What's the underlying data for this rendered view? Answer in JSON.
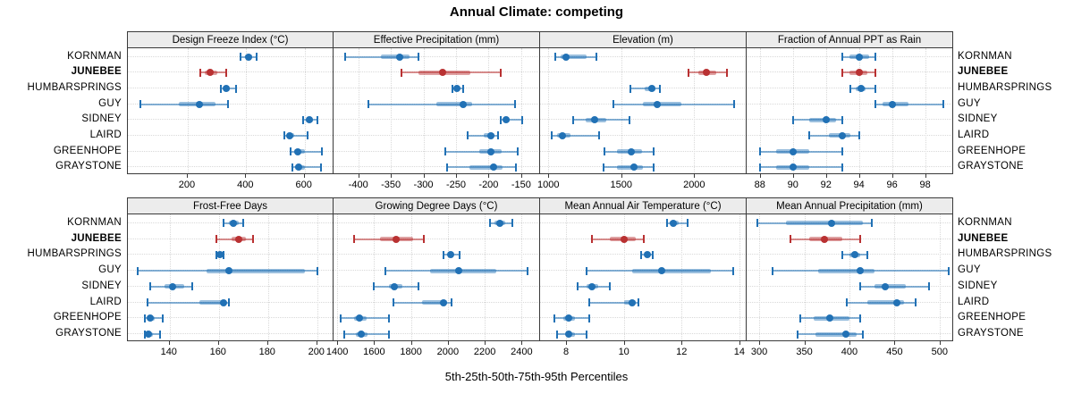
{
  "chart_data": {
    "type": "dotplot",
    "title": "Annual Climate: competing",
    "xlabel": "5th-25th-50th-75th-95th Percentiles",
    "legend_position": "none",
    "grid": "dotted",
    "percentiles": [
      "5th",
      "25th",
      "50th",
      "75th",
      "95th"
    ],
    "stations": [
      "KORNMAN",
      "JUNEBEE",
      "HUMBARSPRINGS",
      "GUY",
      "SIDNEY",
      "LAIRD",
      "GREENHOPE",
      "GRAYSTONE"
    ],
    "highlight_station": "JUNEBEE",
    "colors": {
      "normal": "#2171B5",
      "highlight": "#B93132",
      "grid": "#D9D9D9",
      "strip_bg": "#ECECEC",
      "border": "#3A3A3A"
    },
    "panels": [
      {
        "title": "Design Freeze Index (°C)",
        "row": 0,
        "col": 0,
        "xlim": [
          -5,
          702
        ],
        "ticks": [
          200,
          400,
          600
        ],
        "values": {
          "KORNMAN": [
            382,
            395,
            408,
            420,
            435
          ],
          "JUNEBEE": [
            242,
            258,
            276,
            300,
            332
          ],
          "HUMBARSPRINGS": [
            313,
            325,
            332,
            345,
            365
          ],
          "GUY": [
            37,
            170,
            240,
            295,
            338
          ],
          "SIDNEY": [
            595,
            605,
            617,
            628,
            644
          ],
          "LAIRD": [
            532,
            540,
            550,
            565,
            610
          ],
          "GREENHOPE": [
            553,
            565,
            577,
            600,
            658
          ],
          "GRAYSTONE": [
            557,
            568,
            581,
            600,
            655
          ]
        }
      },
      {
        "title": "Effective Precipitation (mm)",
        "row": 0,
        "col": 1,
        "xlim": [
          -438,
          -121
        ],
        "ticks": [
          -400,
          -350,
          -300,
          -250,
          -200,
          -150
        ],
        "values": {
          "KORNMAN": [
            -420,
            -365,
            -336,
            -322,
            -307
          ],
          "JUNEBEE": [
            -334,
            -307,
            -271,
            -228,
            -182
          ],
          "HUMBARSPRINGS": [
            -256,
            -251,
            -248,
            -244,
            -239
          ],
          "GUY": [
            -384,
            -280,
            -239,
            -225,
            -160
          ],
          "SIDNEY": [
            -181,
            -177,
            -173,
            -168,
            -148
          ],
          "LAIRD": [
            -232,
            -207,
            -196,
            -191,
            -186
          ],
          "GREENHOPE": [
            -266,
            -215,
            -196,
            -180,
            -155
          ],
          "GRAYSTONE": [
            -264,
            -230,
            -192,
            -178,
            -158
          ]
        }
      },
      {
        "title": "Elevation (m)",
        "row": 0,
        "col": 2,
        "xlim": [
          943,
          2360
        ],
        "ticks": [
          1000,
          1500,
          2000
        ],
        "values": {
          "KORNMAN": [
            1049,
            1085,
            1120,
            1260,
            1327
          ],
          "JUNEBEE": [
            1963,
            2030,
            2082,
            2150,
            2228
          ],
          "HUMBARSPRINGS": [
            1562,
            1660,
            1712,
            1735,
            1766
          ],
          "GUY": [
            1448,
            1650,
            1745,
            1915,
            2273
          ],
          "SIDNEY": [
            1170,
            1255,
            1315,
            1400,
            1555
          ],
          "LAIRD": [
            1023,
            1060,
            1097,
            1150,
            1350
          ],
          "GREENHOPE": [
            1384,
            1470,
            1568,
            1640,
            1723
          ],
          "GRAYSTONE": [
            1378,
            1470,
            1588,
            1650,
            1723
          ]
        }
      },
      {
        "title": "Fraction of Annual PPT as Rain",
        "row": 0,
        "col": 3,
        "xlim": [
          87.2,
          99.7
        ],
        "ticks": [
          88,
          90,
          92,
          94,
          96,
          98
        ],
        "values": {
          "KORNMAN": [
            93,
            93.4,
            94,
            94.6,
            95
          ],
          "JUNEBEE": [
            93,
            93.4,
            94,
            94.5,
            95
          ],
          "HUMBARSPRINGS": [
            93.5,
            93.8,
            94.1,
            94.4,
            95
          ],
          "GUY": [
            95,
            95.4,
            96,
            97,
            99.1
          ],
          "SIDNEY": [
            90,
            91,
            92,
            92.6,
            93
          ],
          "LAIRD": [
            91,
            92.2,
            93,
            93.5,
            94
          ],
          "GREENHOPE": [
            88,
            89,
            90,
            91,
            93
          ],
          "GRAYSTONE": [
            88,
            89,
            90,
            91,
            93
          ]
        }
      },
      {
        "title": "Frost-Free Days",
        "row": 1,
        "col": 0,
        "xlim": [
          123,
          207
        ],
        "ticks": [
          140,
          160,
          180,
          200
        ],
        "values": {
          "KORNMAN": [
            162,
            164,
            166,
            168,
            170
          ],
          "JUNEBEE": [
            159,
            165,
            168,
            171,
            174
          ],
          "HUMBARSPRINGS": [
            159,
            160,
            160.5,
            161,
            162
          ],
          "GUY": [
            127,
            155,
            164,
            195,
            200
          ],
          "SIDNEY": [
            132,
            138,
            141,
            146,
            149
          ],
          "LAIRD": [
            131,
            152,
            162,
            163,
            164
          ],
          "GREENHOPE": [
            130,
            131,
            132,
            134,
            137
          ],
          "GRAYSTONE": [
            130,
            131,
            131.5,
            133,
            136
          ]
        }
      },
      {
        "title": "Growing Degree Days (°C)",
        "row": 1,
        "col": 1,
        "xlim": [
          1380,
          2500
        ],
        "ticks": [
          1400,
          1600,
          1800,
          2000,
          2200,
          2400
        ],
        "values": {
          "KORNMAN": [
            2230,
            2255,
            2280,
            2310,
            2350
          ],
          "JUNEBEE": [
            1490,
            1630,
            1720,
            1810,
            1870
          ],
          "HUMBARSPRINGS": [
            1975,
            2000,
            2015,
            2030,
            2065
          ],
          "GUY": [
            1660,
            1905,
            2060,
            2260,
            2430
          ],
          "SIDNEY": [
            1600,
            1680,
            1710,
            1755,
            1840
          ],
          "LAIRD": [
            1705,
            1860,
            1975,
            1995,
            2020
          ],
          "GREENHOPE": [
            1420,
            1490,
            1520,
            1560,
            1680
          ],
          "GRAYSTONE": [
            1440,
            1500,
            1530,
            1565,
            1680
          ]
        }
      },
      {
        "title": "Mean Annual Air Temperature (°C)",
        "row": 1,
        "col": 2,
        "xlim": [
          7.1,
          14.25
        ],
        "ticks": [
          8,
          10,
          12,
          14
        ],
        "values": {
          "KORNMAN": [
            11.5,
            11.6,
            11.7,
            11.9,
            12.2
          ],
          "JUNEBEE": [
            8.9,
            9.5,
            10.0,
            10.4,
            10.7
          ],
          "HUMBARSPRINGS": [
            10.6,
            10.75,
            10.8,
            10.9,
            11.0
          ],
          "GUY": [
            8.7,
            10.3,
            11.3,
            13.0,
            13.8
          ],
          "SIDNEY": [
            8.4,
            8.7,
            8.9,
            9.1,
            9.5
          ],
          "LAIRD": [
            8.8,
            10.0,
            10.3,
            10.4,
            10.5
          ],
          "GREENHOPE": [
            7.6,
            7.9,
            8.1,
            8.3,
            8.8
          ],
          "GRAYSTONE": [
            7.7,
            8.0,
            8.1,
            8.3,
            8.7
          ]
        }
      },
      {
        "title": "Mean Annual Precipitation (mm)",
        "row": 1,
        "col": 3,
        "xlim": [
          286,
          515
        ],
        "ticks": [
          300,
          350,
          400,
          450,
          500
        ],
        "values": {
          "KORNMAN": [
            298,
            330,
            380,
            415,
            425
          ],
          "JUNEBEE": [
            335,
            355,
            372,
            392,
            412
          ],
          "HUMBARSPRINGS": [
            392,
            400,
            406,
            412,
            420
          ],
          "GUY": [
            315,
            365,
            412,
            428,
            510
          ],
          "SIDNEY": [
            412,
            428,
            440,
            462,
            488
          ],
          "LAIRD": [
            397,
            420,
            453,
            460,
            473
          ],
          "GREENHOPE": [
            345,
            360,
            378,
            400,
            412
          ],
          "GRAYSTONE": [
            343,
            362,
            396,
            408,
            415
          ]
        }
      }
    ]
  }
}
